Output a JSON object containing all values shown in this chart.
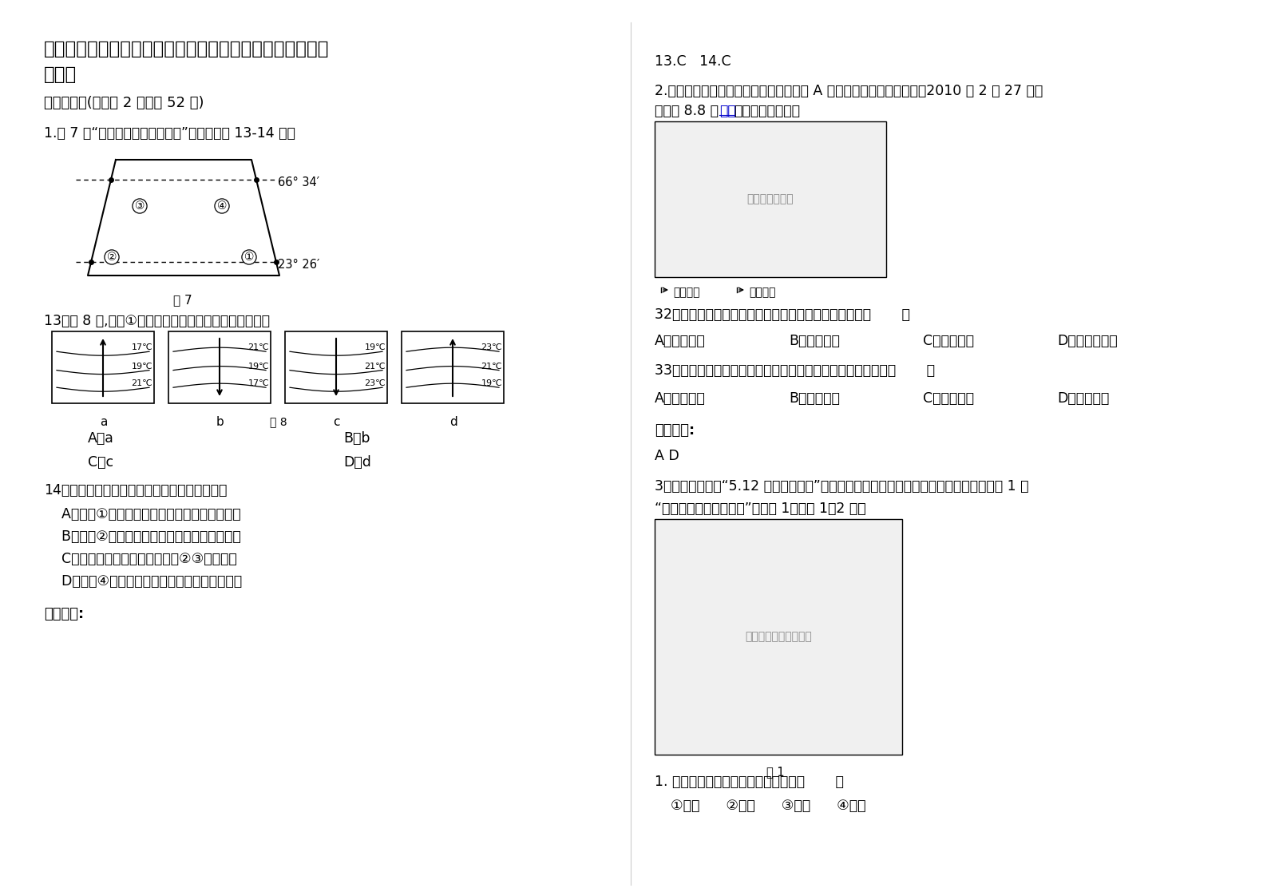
{
  "bg_color": "#ffffff",
  "title_line1": "河南省商丘市夏邑县第一高级中学高二地理下学期期末试卷",
  "title_line2": "含解析",
  "section1": "一、选择题(每小题 2 分，共 52 分)",
  "q1_text": "1.图 7 为“太平洋部分海域示意图”，读图完成 13-14 题。",
  "lat1": "66° 34′",
  "lat2": "23° 26′",
  "fig7_label": "图 7",
  "q13_text": "13．图 8 中,表示①处洋流流向及其附近海域等温线的是",
  "fig8_label": "图 8",
  "q13_A": "A．a",
  "q13_B": "B．b",
  "q13_C": "C．c",
  "q13_D": "D．d",
  "q14_text": "14．关于洋流对地理环境的影响，说法正确的是",
  "q14_A": "    A．洋流①利于污染物向北扩散，加快净化速度",
  "q14_B": "    B．洋流②延长了上海至旧金山的船只航行时间",
  "q14_C": "    C．世界性大渔场最有可能位于②③海域之间",
  "q14_D": "    D．洋流④对欧洲西部气候的降温减湿作用明显",
  "left_answer_label": "参考答案:",
  "right_answer_header": "13.C   14.C",
  "q2_intro": "2.该图为局部板块构造示意图，图中城市 A 为智利南部康塞普西翁市，2010 年 2 月 27 日发",
  "q2_intro2_before": "生里氏 8.8 级",
  "q2_earthquake": "地震",
  "q2_intro2_after": "，读图完成问题。",
  "q32_text": "32．这次地震是南极洲板块与下列哪个板块碰撞形成的（       ）",
  "q32_A": "A．美洲板块",
  "q32_B": "B．非洲板块",
  "q32_C": "C．亚欧板块",
  "q32_D": "D．印度洋板块",
  "q33_text": "33．按自然灾害的成因与发展过程进行分类，这次地震应属于（       ）",
  "q33_A": "A．气象灾害",
  "q33_B": "B．生物灾害",
  "q33_C": "C．海洋灾害",
  "q33_D": "D．地质灾害",
  "answer2_label": "参考答案:",
  "answer2_text": "A D",
  "q3_line1": "3．北川新县城是“5.12 汶川特大地震”灾后重建项目中惟一一个整体异地重建的县城。图 1 是",
  "q3_line2": "“北川新县城规划示意图”，读图 1，回答 1～2 题。",
  "q_site1": "1. 北川新县城选址考虑的主要因素有（       ）",
  "q_site1_opts": "①地质      ②地形      ③水源      ④交通"
}
